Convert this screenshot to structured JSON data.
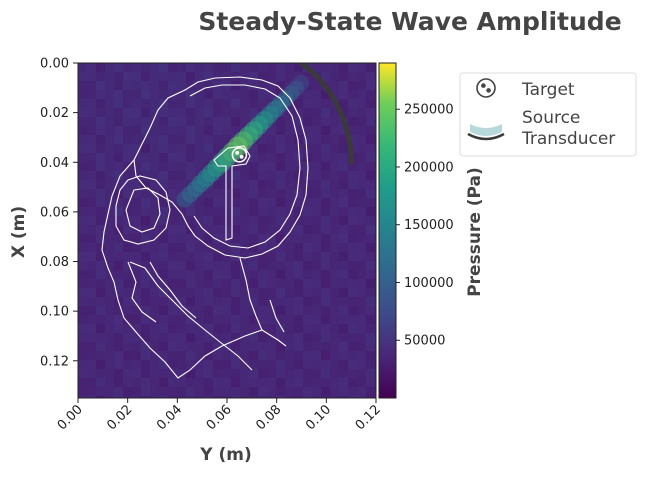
{
  "chart_data": {
    "type": "heatmap",
    "title": "Steady-State Wave Amplitude",
    "xlabel": "Y (m)",
    "ylabel": "X (m)",
    "xlim": [
      0.0,
      0.12
    ],
    "ylim": [
      0.0,
      0.135
    ],
    "y_inverted": true,
    "xticks": [
      "0.00",
      "0.02",
      "0.04",
      "0.06",
      "0.08",
      "0.10",
      "0.12"
    ],
    "yticks": [
      "0.00",
      "0.02",
      "0.04",
      "0.06",
      "0.08",
      "0.10",
      "0.12"
    ],
    "xtick_values": [
      0.0,
      0.02,
      0.04,
      0.06,
      0.08,
      0.1,
      0.12
    ],
    "ytick_values": [
      0.0,
      0.02,
      0.04,
      0.06,
      0.08,
      0.1,
      0.12
    ],
    "colorbar": {
      "label": "Pressure (Pa)",
      "range": [
        0,
        290000
      ],
      "ticks": [
        50000,
        100000,
        150000,
        200000,
        250000
      ],
      "tick_labels": [
        "50000",
        "100000",
        "150000",
        "200000",
        "250000"
      ],
      "colormap": "viridis"
    },
    "target": {
      "y": 0.065,
      "x": 0.037
    },
    "transducer": {
      "center_y": 0.06,
      "center_x": 0.04,
      "radius": 0.05,
      "angle_start": -95,
      "angle_end": 0
    },
    "background_level": 30000,
    "beam": {
      "start": {
        "y": 0.09,
        "x": 0.008
      },
      "end": {
        "y": 0.043,
        "x": 0.055
      },
      "peak": 250000
    },
    "legend": {
      "position": "upper-right outside",
      "entries": [
        {
          "label": "Target",
          "marker": "target"
        },
        {
          "label": "Source\nTransducer",
          "marker": "transducer"
        }
      ]
    }
  },
  "colors": {
    "title": "#444444",
    "outline": "#ffffff",
    "transducer": "#3a3a3a",
    "legend_transducer_fill": "#b8d9dc"
  }
}
